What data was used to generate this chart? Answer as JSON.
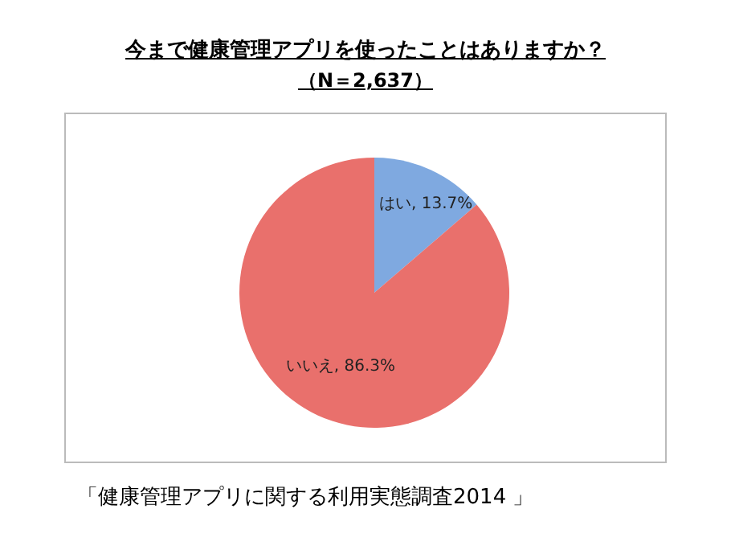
{
  "chart_data": {
    "type": "pie",
    "title": "今まで健康管理アプリを使ったことはありますか？",
    "subtitle": "（N＝2,637）",
    "categories": [
      "はい",
      "いいえ"
    ],
    "values": [
      13.7,
      86.3
    ],
    "value_labels": [
      "13.7%",
      "86.3%"
    ],
    "colors": [
      "#7fa9e0",
      "#e9706c"
    ],
    "legend": false,
    "annotations": [
      "「健康管理アプリに関する利用実態調査2014 」"
    ]
  }
}
